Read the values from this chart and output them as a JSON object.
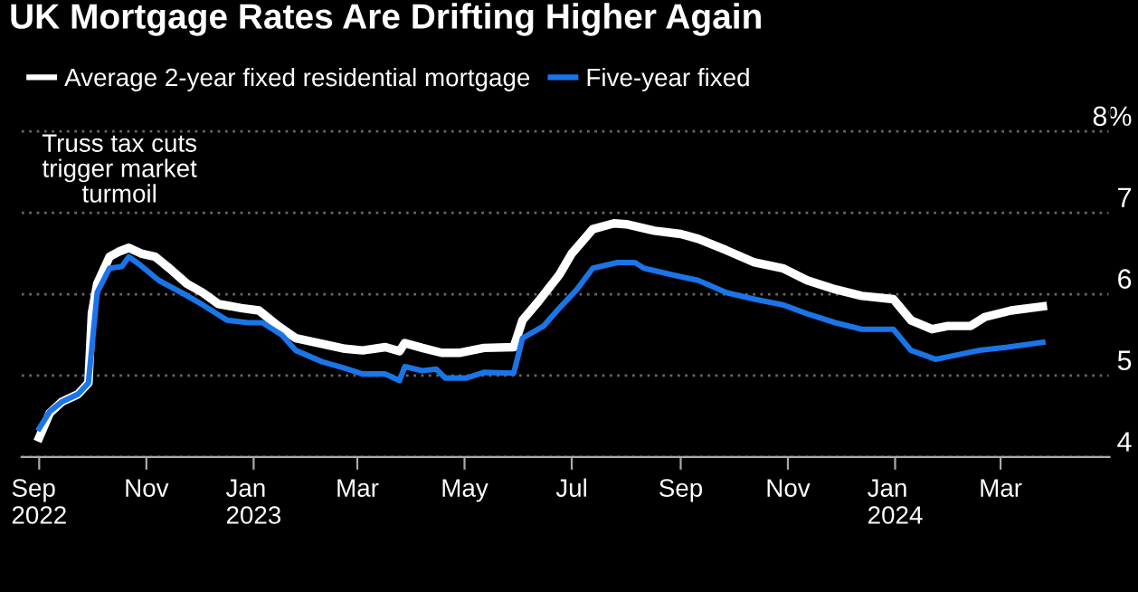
{
  "chart_data": {
    "type": "line",
    "title": "UK Mortgage Rates Are Drifting Higher Again",
    "series": [
      {
        "name": "Average 2-year fixed residential mortgage",
        "color": "#ffffff",
        "x": [
          "2022-09-01",
          "2022-09-07",
          "2022-09-14",
          "2022-09-23",
          "2022-09-29",
          "2022-10-01",
          "2022-10-04",
          "2022-10-11",
          "2022-10-16",
          "2022-10-22",
          "2022-10-29",
          "2022-11-06",
          "2022-11-14",
          "2022-11-24",
          "2022-12-03",
          "2022-12-12",
          "2022-12-25",
          "2023-01-04",
          "2023-01-15",
          "2023-01-25",
          "2023-02-09",
          "2023-02-22",
          "2023-03-04",
          "2023-03-17",
          "2023-03-25",
          "2023-03-28",
          "2023-04-07",
          "2023-04-18",
          "2023-04-28",
          "2023-05-12",
          "2023-05-29",
          "2023-06-03",
          "2023-06-12",
          "2023-06-24",
          "2023-07-01",
          "2023-07-13",
          "2023-07-25",
          "2023-08-01",
          "2023-08-17",
          "2023-09-01",
          "2023-09-11",
          "2023-09-27",
          "2023-10-13",
          "2023-10-29",
          "2023-11-12",
          "2023-11-28",
          "2023-12-13",
          "2023-12-31",
          "2024-01-10",
          "2024-01-22",
          "2024-01-31",
          "2024-02-13",
          "2024-02-21",
          "2024-03-07",
          "2024-03-25"
        ],
        "values": [
          4.24,
          4.54,
          4.68,
          4.77,
          4.91,
          5.77,
          6.13,
          6.46,
          6.52,
          6.57,
          6.5,
          6.46,
          6.32,
          6.13,
          6.02,
          5.88,
          5.83,
          5.8,
          5.61,
          5.46,
          5.39,
          5.33,
          5.31,
          5.35,
          5.3,
          5.4,
          5.34,
          5.28,
          5.28,
          5.34,
          5.35,
          5.68,
          5.91,
          6.24,
          6.5,
          6.8,
          6.87,
          6.86,
          6.78,
          6.74,
          6.68,
          6.54,
          6.39,
          6.32,
          6.17,
          6.06,
          5.98,
          5.94,
          5.68,
          5.57,
          5.61,
          5.61,
          5.72,
          5.8,
          5.85
        ]
      },
      {
        "name": "Five-year fixed",
        "color": "#1a75e8",
        "x": [
          "2022-09-01",
          "2022-09-07",
          "2022-09-14",
          "2022-09-23",
          "2022-09-29",
          "2022-10-04",
          "2022-10-11",
          "2022-10-18",
          "2022-10-22",
          "2022-10-29",
          "2022-11-08",
          "2022-11-21",
          "2022-12-03",
          "2022-12-17",
          "2022-12-29",
          "2023-01-06",
          "2023-01-17",
          "2023-01-25",
          "2023-02-09",
          "2023-02-22",
          "2023-03-04",
          "2023-03-17",
          "2023-03-25",
          "2023-03-28",
          "2023-04-07",
          "2023-04-15",
          "2023-04-20",
          "2023-05-02",
          "2023-05-12",
          "2023-05-29",
          "2023-06-03",
          "2023-06-15",
          "2023-06-24",
          "2023-07-04",
          "2023-07-13",
          "2023-07-27",
          "2023-08-06",
          "2023-08-11",
          "2023-08-27",
          "2023-09-11",
          "2023-09-27",
          "2023-10-13",
          "2023-10-29",
          "2023-11-12",
          "2023-11-28",
          "2023-12-13",
          "2023-12-31",
          "2024-01-10",
          "2024-01-24",
          "2024-02-02",
          "2024-02-18",
          "2024-03-05",
          "2024-03-25"
        ],
        "values": [
          4.35,
          4.56,
          4.68,
          4.77,
          4.91,
          6.02,
          6.32,
          6.34,
          6.46,
          6.35,
          6.17,
          6.02,
          5.87,
          5.68,
          5.65,
          5.65,
          5.5,
          5.31,
          5.17,
          5.09,
          5.02,
          5.02,
          4.94,
          5.11,
          5.06,
          5.08,
          4.97,
          4.97,
          5.04,
          5.03,
          5.46,
          5.61,
          5.83,
          6.06,
          6.32,
          6.39,
          6.39,
          6.32,
          6.24,
          6.17,
          6.02,
          5.94,
          5.87,
          5.76,
          5.65,
          5.57,
          5.57,
          5.31,
          5.2,
          5.24,
          5.31,
          5.35,
          5.41
        ]
      }
    ],
    "xlim": [
      "2022-08-22",
      "2024-05-02"
    ],
    "xticks": [
      {
        "value": "2022-09-01",
        "label": "Sep\n2022"
      },
      {
        "value": "2022-11-01",
        "label": "Nov"
      },
      {
        "value": "2023-01-01",
        "label": "Jan\n2023"
      },
      {
        "value": "2023-03-01",
        "label": "Mar"
      },
      {
        "value": "2023-05-01",
        "label": "May"
      },
      {
        "value": "2023-07-01",
        "label": "Jul"
      },
      {
        "value": "2023-09-01",
        "label": "Sep"
      },
      {
        "value": "2023-11-01",
        "label": "Nov"
      },
      {
        "value": "2024-01-01",
        "label": "Jan\n2024"
      },
      {
        "value": "2024-03-01",
        "label": "Mar"
      }
    ],
    "ylim": [
      4,
      8.4
    ],
    "yticks": [
      4,
      5,
      6,
      7,
      {
        "value": 8,
        "label": "8%"
      }
    ],
    "grid": "y",
    "legend": "top left",
    "annotations": [
      "Truss tax cuts\ntrigger market\nturmoil"
    ]
  }
}
